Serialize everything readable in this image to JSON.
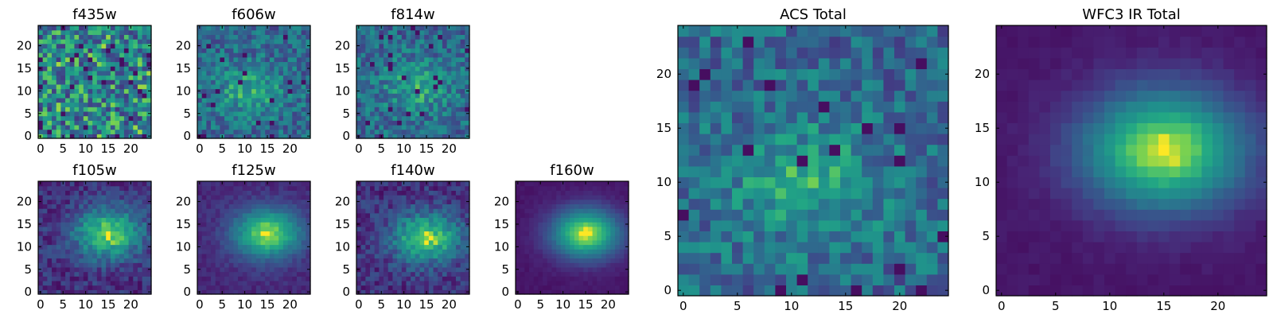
{
  "chart_data": [
    {
      "type": "heatmap",
      "title": "f435w",
      "colormap": "viridis",
      "grid_size": 25,
      "xlim": [
        0,
        24
      ],
      "ylim": [
        0,
        24
      ],
      "xticks": [
        0,
        5,
        10,
        15,
        20
      ],
      "yticks": [
        0,
        5,
        10,
        15,
        20
      ],
      "pattern": "noise",
      "center": [
        12,
        12
      ],
      "seed": 3
    },
    {
      "type": "heatmap",
      "title": "f606w",
      "colormap": "viridis",
      "grid_size": 25,
      "xlim": [
        0,
        24
      ],
      "ylim": [
        0,
        24
      ],
      "xticks": [
        0,
        5,
        10,
        15,
        20
      ],
      "yticks": [
        0,
        5,
        10,
        15,
        20
      ],
      "pattern": "faint_blob",
      "center": [
        11,
        10
      ],
      "seed": 7
    },
    {
      "type": "heatmap",
      "title": "f814w",
      "colormap": "viridis",
      "grid_size": 25,
      "xlim": [
        0,
        24
      ],
      "ylim": [
        0,
        24
      ],
      "xticks": [
        0,
        5,
        10,
        15,
        20
      ],
      "yticks": [
        0,
        5,
        10,
        15,
        20
      ],
      "pattern": "faint_blob",
      "center": [
        13,
        11
      ],
      "seed": 11
    },
    {
      "type": "heatmap",
      "title": "f105w",
      "colormap": "viridis",
      "grid_size": 25,
      "xlim": [
        0,
        24
      ],
      "ylim": [
        0,
        24
      ],
      "xticks": [
        0,
        5,
        10,
        15,
        20
      ],
      "yticks": [
        0,
        5,
        10,
        15,
        20
      ],
      "pattern": "noisy_blob",
      "center": [
        15,
        13
      ],
      "seed": 13
    },
    {
      "type": "heatmap",
      "title": "f125w",
      "colormap": "viridis",
      "grid_size": 25,
      "xlim": [
        0,
        24
      ],
      "ylim": [
        0,
        24
      ],
      "xticks": [
        0,
        5,
        10,
        15,
        20
      ],
      "yticks": [
        0,
        5,
        10,
        15,
        20
      ],
      "pattern": "blob",
      "center": [
        15,
        13
      ],
      "seed": 17
    },
    {
      "type": "heatmap",
      "title": "f140w",
      "colormap": "viridis",
      "grid_size": 25,
      "xlim": [
        0,
        24
      ],
      "ylim": [
        0,
        24
      ],
      "xticks": [
        0,
        5,
        10,
        15,
        20
      ],
      "yticks": [
        0,
        5,
        10,
        15,
        20
      ],
      "pattern": "noisy_blob",
      "center": [
        15,
        12
      ],
      "seed": 19
    },
    {
      "type": "heatmap",
      "title": "f160w",
      "colormap": "viridis",
      "grid_size": 25,
      "xlim": [
        0,
        24
      ],
      "ylim": [
        0,
        24
      ],
      "xticks": [
        0,
        5,
        10,
        15,
        20
      ],
      "yticks": [
        0,
        5,
        10,
        15,
        20
      ],
      "pattern": "smooth_blob",
      "center": [
        15,
        13
      ],
      "seed": 23
    },
    {
      "type": "heatmap",
      "title": "ACS Total",
      "colormap": "viridis",
      "grid_size": 25,
      "xlim": [
        0,
        24
      ],
      "ylim": [
        0,
        24
      ],
      "xticks": [
        0,
        5,
        10,
        15,
        20
      ],
      "yticks": [
        0,
        5,
        10,
        15,
        20
      ],
      "pattern": "faint_blob",
      "center": [
        11,
        10
      ],
      "seed": 29
    },
    {
      "type": "heatmap",
      "title": "WFC3 IR Total",
      "colormap": "viridis",
      "grid_size": 25,
      "xlim": [
        0,
        24
      ],
      "ylim": [
        0,
        24
      ],
      "xticks": [
        0,
        5,
        10,
        15,
        20
      ],
      "yticks": [
        0,
        5,
        10,
        15,
        20
      ],
      "pattern": "smooth_blob",
      "center": [
        15,
        13
      ],
      "seed": 31
    }
  ]
}
